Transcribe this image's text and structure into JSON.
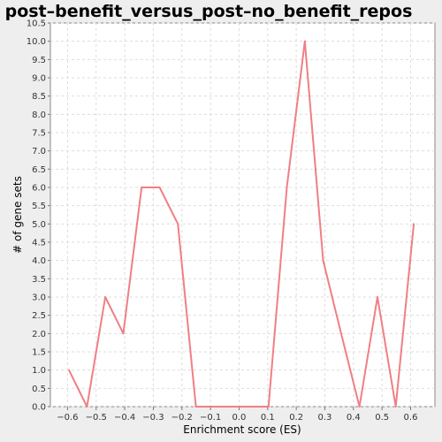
{
  "chart_data": {
    "type": "line",
    "title": "post–benefit_versus_post–no_benefit_repos",
    "xlabel": "Enrichment score (ES)",
    "ylabel": "# of gene sets",
    "xlim": [
      -0.66,
      0.685
    ],
    "ylim": [
      0,
      10.5
    ],
    "x_ticks": [
      "−0.6",
      "−0.5",
      "−0.4",
      "−0.3",
      "−0.2",
      "−0.1",
      "0.0",
      "0.1",
      "0.2",
      "0.3",
      "0.4",
      "0.5",
      "0.6"
    ],
    "y_ticks": [
      "0.0",
      "0.5",
      "1.0",
      "1.5",
      "2.0",
      "2.5",
      "3.0",
      "3.5",
      "4.0",
      "4.5",
      "5.0",
      "5.5",
      "6.0",
      "6.5",
      "7.0",
      "7.5",
      "8.0",
      "8.5",
      "9.0",
      "9.5",
      "10.0",
      "10.5"
    ],
    "grid": true,
    "line_color": "#f07f84",
    "series": [
      {
        "x": [
          -0.595,
          -0.532,
          -0.468,
          -0.405,
          -0.341,
          -0.278,
          -0.214,
          -0.151,
          -0.087,
          -0.024,
          0.04,
          0.103,
          0.167,
          0.23,
          0.294,
          0.357,
          0.421,
          0.484,
          0.548,
          0.611
        ],
        "values": [
          1,
          0,
          3,
          2,
          6,
          6,
          5,
          0,
          0,
          0,
          0,
          0,
          6,
          10,
          4,
          2,
          0,
          3,
          0,
          5
        ]
      }
    ]
  }
}
